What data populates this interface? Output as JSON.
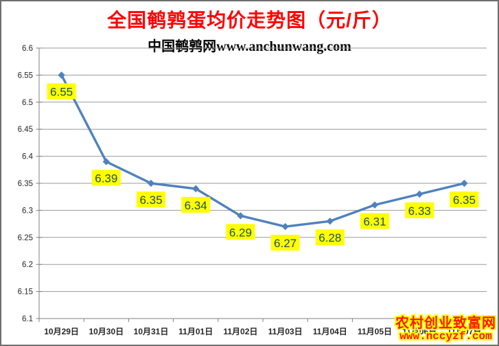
{
  "page": {
    "background": "#FFFFFF",
    "border_color": "#6E6E6E"
  },
  "header": {
    "title": "全国鹌鹑蛋均价走势图（元/斤）",
    "title_color": "#FF0000",
    "subtitle": "中国鹌鹑网www.anchunwang.com",
    "subtitle_color": "#000000"
  },
  "watermark": {
    "site_name": "农村创业致富网",
    "site_url": "www.nccyzf.com",
    "text_color": "#FF1500",
    "outline_color": "#FFFF00"
  },
  "chart_data": {
    "type": "line",
    "title": "全国鹌鹑蛋均价走势图（元/斤）",
    "subtitle": "中国鹌鹑网www.anchunwang.com",
    "categories": [
      "10月29日",
      "10月30日",
      "10月31日",
      "11月01日",
      "11月02日",
      "11月03日",
      "11月04日",
      "11月05日",
      "11月06日",
      "11月07日"
    ],
    "values": [
      6.55,
      6.39,
      6.35,
      6.34,
      6.29,
      6.27,
      6.28,
      6.31,
      6.33,
      6.35
    ],
    "data_labels": [
      "6.55",
      "6.39",
      "6.35",
      "6.34",
      "6.29",
      "6.27",
      "6.28",
      "6.31",
      "6.33",
      "6.35"
    ],
    "xlabel": "",
    "ylabel": "",
    "ylim": [
      6.1,
      6.6
    ],
    "ytick_step": 0.05,
    "yticks": [
      "6.6",
      "6.55",
      "6.5",
      "6.45",
      "6.4",
      "6.35",
      "6.3",
      "6.25",
      "6.2",
      "6.15",
      "6.1"
    ],
    "grid": true,
    "legend": false,
    "colors": {
      "line": "#4F81BD",
      "marker": "#4F81BD",
      "label_bg": "#FFFF00",
      "label_text": "#1F4E5A",
      "grid": "#9A9A9A",
      "axis": "#808080",
      "axis_text": "#262626"
    }
  }
}
